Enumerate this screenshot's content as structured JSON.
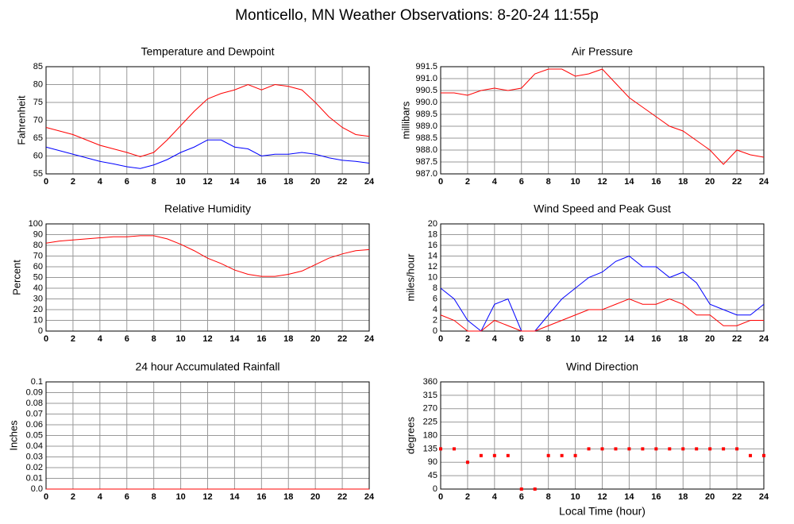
{
  "title": "Monticello, MN Weather Observations: 8-20-24 11:55p",
  "chart_data": [
    {
      "type": "line",
      "title": "Temperature and Dewpoint",
      "ylabel": "Fahrenheit",
      "x": [
        0,
        1,
        2,
        3,
        4,
        5,
        6,
        7,
        8,
        9,
        10,
        11,
        12,
        13,
        14,
        15,
        16,
        17,
        18,
        19,
        20,
        21,
        22,
        23,
        24
      ],
      "xlim": [
        0,
        24
      ],
      "xticks": [
        0,
        2,
        4,
        6,
        8,
        10,
        12,
        14,
        16,
        18,
        20,
        22,
        24
      ],
      "ylim": [
        55,
        85
      ],
      "yticks": [
        55,
        60,
        65,
        70,
        75,
        80,
        85
      ],
      "grid": true,
      "series": [
        {
          "color": "#ff0000",
          "values": [
            68,
            67,
            66,
            64.5,
            63,
            62,
            61,
            59.8,
            61,
            64.5,
            68.5,
            72.5,
            76,
            77.5,
            78.5,
            80,
            78.5,
            80,
            79.5,
            78.5,
            75,
            71,
            68,
            66,
            65.5
          ]
        },
        {
          "color": "#0000ff",
          "values": [
            62.5,
            61.5,
            60.5,
            59.5,
            58.5,
            57.8,
            57,
            56.5,
            57.5,
            59,
            61,
            62.5,
            64.5,
            64.5,
            62.5,
            62,
            60,
            60.5,
            60.5,
            61,
            60.5,
            59.5,
            58.8,
            58.5,
            58
          ]
        }
      ]
    },
    {
      "type": "line",
      "title": "Air Pressure",
      "ylabel": "millibars",
      "x": [
        0,
        1,
        2,
        3,
        4,
        5,
        6,
        7,
        8,
        9,
        10,
        11,
        12,
        13,
        14,
        15,
        16,
        17,
        18,
        19,
        20,
        21,
        22,
        23,
        24
      ],
      "xlim": [
        0,
        24
      ],
      "xticks": [
        0,
        2,
        4,
        6,
        8,
        10,
        12,
        14,
        16,
        18,
        20,
        22,
        24
      ],
      "ylim": [
        987,
        991.5
      ],
      "yticks": [
        {
          "value": 987,
          "label": "987.0"
        },
        987.5,
        {
          "value": 988,
          "label": "988.0"
        },
        988.5,
        {
          "value": 989,
          "label": "989.0"
        },
        989.5,
        {
          "value": 990,
          "label": "990.0"
        },
        990.5,
        {
          "value": 991,
          "label": "991.0"
        },
        991.5
      ],
      "grid": true,
      "series": [
        {
          "color": "#ff0000",
          "values": [
            990.4,
            990.4,
            990.3,
            990.5,
            990.6,
            990.5,
            990.6,
            991.2,
            991.4,
            991.4,
            991.1,
            991.2,
            991.4,
            990.8,
            990.2,
            989.8,
            989.4,
            989.0,
            988.8,
            988.4,
            988.0,
            987.4,
            988.0,
            987.8,
            987.7
          ]
        }
      ]
    },
    {
      "type": "line",
      "title": "Relative Humidity",
      "ylabel": "Percent",
      "x": [
        0,
        1,
        2,
        3,
        4,
        5,
        6,
        7,
        8,
        9,
        10,
        11,
        12,
        13,
        14,
        15,
        16,
        17,
        18,
        19,
        20,
        21,
        22,
        23,
        24
      ],
      "xlim": [
        0,
        24
      ],
      "xticks": [
        0,
        2,
        4,
        6,
        8,
        10,
        12,
        14,
        16,
        18,
        20,
        22,
        24
      ],
      "ylim": [
        0,
        100
      ],
      "yticks": [
        0,
        10,
        20,
        30,
        40,
        50,
        60,
        70,
        80,
        90,
        100
      ],
      "grid": true,
      "series": [
        {
          "color": "#ff0000",
          "values": [
            82,
            84,
            85,
            86,
            87,
            88,
            88,
            89,
            89,
            86,
            81,
            75,
            68,
            63,
            57,
            53,
            51,
            51,
            53,
            56,
            62,
            68,
            72,
            75,
            76
          ]
        }
      ]
    },
    {
      "type": "line",
      "title": "Wind Speed and Peak Gust",
      "ylabel": "miles/hour",
      "x": [
        0,
        1,
        2,
        3,
        4,
        5,
        6,
        7,
        8,
        9,
        10,
        11,
        12,
        13,
        14,
        15,
        16,
        17,
        18,
        19,
        20,
        21,
        22,
        23,
        24
      ],
      "xlim": [
        0,
        24
      ],
      "xticks": [
        0,
        2,
        4,
        6,
        8,
        10,
        12,
        14,
        16,
        18,
        20,
        22,
        24
      ],
      "ylim": [
        0,
        20
      ],
      "yticks": [
        0,
        2,
        4,
        6,
        8,
        10,
        12,
        14,
        16,
        18,
        20
      ],
      "grid": true,
      "series": [
        {
          "color": "#0000ff",
          "values": [
            8,
            6,
            2,
            0,
            5,
            6,
            0,
            0,
            3,
            6,
            8,
            10,
            11,
            13,
            14,
            12,
            12,
            10,
            11,
            9,
            5,
            4,
            3,
            3,
            5
          ]
        },
        {
          "color": "#ff0000",
          "values": [
            3,
            2,
            0,
            0,
            2,
            1,
            0,
            0,
            1,
            2,
            3,
            4,
            4,
            5,
            6,
            5,
            5,
            6,
            5,
            3,
            3,
            1,
            1,
            2,
            2
          ]
        }
      ]
    },
    {
      "type": "line",
      "title": "24 hour Accumulated Rainfall",
      "ylabel": "Inches",
      "x": [
        0,
        24
      ],
      "xlim": [
        0,
        24
      ],
      "xticks": [
        0,
        2,
        4,
        6,
        8,
        10,
        12,
        14,
        16,
        18,
        20,
        22,
        24
      ],
      "ylim": [
        0,
        0.1
      ],
      "yticks": [
        {
          "value": 0,
          "label": "0.0"
        },
        0.01,
        0.02,
        0.03,
        0.04,
        0.05,
        0.06,
        0.07,
        0.08,
        0.09,
        0.1
      ],
      "grid": true,
      "series": [
        {
          "color": "#ff0000",
          "values": [
            0,
            0
          ]
        }
      ]
    },
    {
      "type": "scatter",
      "title": "Wind Direction",
      "ylabel": "degrees",
      "xlabel": "Local Time (hour)",
      "x": [
        0,
        1,
        2,
        3,
        4,
        5,
        6,
        7,
        8,
        9,
        10,
        11,
        12,
        13,
        14,
        15,
        16,
        17,
        18,
        19,
        20,
        21,
        22,
        23,
        24
      ],
      "xlim": [
        0,
        24
      ],
      "xticks": [
        0,
        2,
        4,
        6,
        8,
        10,
        12,
        14,
        16,
        18,
        20,
        22,
        24
      ],
      "ylim": [
        0,
        360
      ],
      "yticks": [
        0,
        45,
        90,
        135,
        180,
        225,
        270,
        315,
        360
      ],
      "grid": true,
      "series": [
        {
          "color": "#ff0000",
          "values": [
            135,
            135,
            90,
            112.5,
            112.5,
            112.5,
            0,
            0,
            112.5,
            112.5,
            112.5,
            135,
            135,
            135,
            135,
            135,
            135,
            135,
            135,
            135,
            135,
            135,
            135,
            112.5,
            112.5
          ]
        }
      ]
    }
  ]
}
